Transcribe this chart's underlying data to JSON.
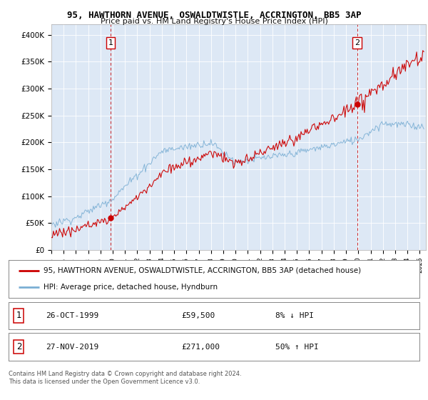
{
  "title": "95, HAWTHORN AVENUE, OSWALDTWISTLE, ACCRINGTON, BB5 3AP",
  "subtitle": "Price paid vs. HM Land Registry's House Price Index (HPI)",
  "plot_bg_color": "#dde8f5",
  "ylim": [
    0,
    420000
  ],
  "yticks": [
    0,
    50000,
    100000,
    150000,
    200000,
    250000,
    300000,
    350000,
    400000
  ],
  "ytick_labels": [
    "£0",
    "£50K",
    "£100K",
    "£150K",
    "£200K",
    "£250K",
    "£300K",
    "£350K",
    "£400K"
  ],
  "sale1": {
    "date_num": 1999.82,
    "price": 59500,
    "label": "1"
  },
  "sale2": {
    "date_num": 2019.91,
    "price": 271000,
    "label": "2"
  },
  "legend_property": "95, HAWTHORN AVENUE, OSWALDTWISTLE, ACCRINGTON, BB5 3AP (detached house)",
  "legend_hpi": "HPI: Average price, detached house, Hyndburn",
  "footer1": "Contains HM Land Registry data © Crown copyright and database right 2024.",
  "footer2": "This data is licensed under the Open Government Licence v3.0.",
  "property_line_color": "#cc0000",
  "hpi_line_color": "#7bafd4",
  "vline_color": "#cc0000",
  "table_row1": [
    "1",
    "26-OCT-1999",
    "£59,500",
    "8% ↓ HPI"
  ],
  "table_row2": [
    "2",
    "27-NOV-2019",
    "£271,000",
    "50% ↑ HPI"
  ],
  "xstart": 1995,
  "xend": 2025.5
}
